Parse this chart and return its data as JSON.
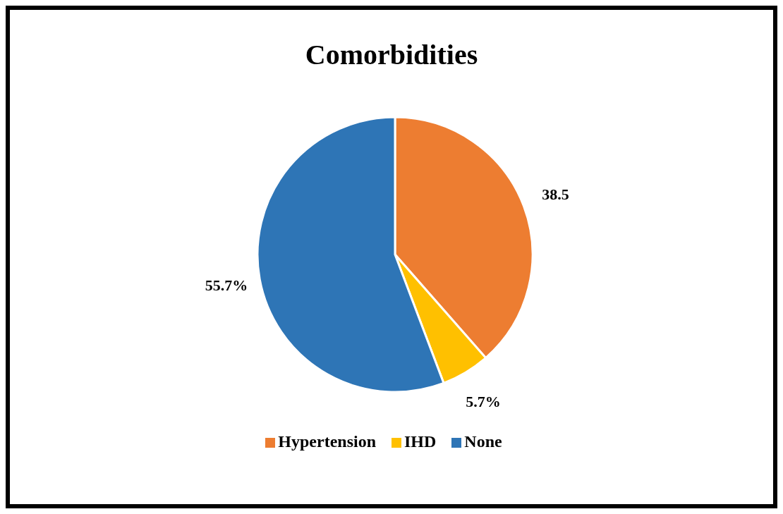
{
  "chart_data": {
    "type": "pie",
    "title": "Comorbidities",
    "categories": [
      "Hypertension",
      "IHD",
      "None"
    ],
    "values": [
      38.5,
      5.7,
      55.7
    ],
    "colors": [
      "#ed7d31",
      "#ffc000",
      "#2e75b6"
    ],
    "value_labels": [
      "38.5",
      "5.7%",
      "55.7%"
    ],
    "legend": "bottom"
  }
}
